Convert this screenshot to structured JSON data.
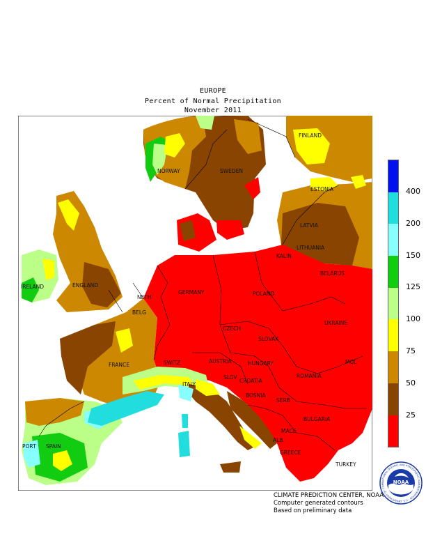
{
  "header": {
    "region": "EUROPE",
    "title": "Percent of Normal Precipitation",
    "period": "November 2011"
  },
  "legend": {
    "colors": [
      "#0011ee",
      "#22dddd",
      "#88ffff",
      "#11cc11",
      "#bbff88",
      "#ffff00",
      "#cc8800",
      "#884400",
      "#ff0000"
    ],
    "labels": [
      "400",
      "200",
      "150",
      "125",
      "100",
      "75",
      "50",
      "25"
    ]
  },
  "map": {
    "labels": {
      "finland": "FINLAND",
      "norway": "NORWAY",
      "sweden": "SWEDEN",
      "estonia": "ESTONIA",
      "latvia": "LATVIA",
      "lithuania": "LITHUANIA",
      "kalin": "KALIN",
      "belarus": "BELARUS",
      "ireland": "IRELAND",
      "england": "ENGLAND",
      "neth": "NETH",
      "belg": "BELG",
      "germany": "GERMANY",
      "poland": "POLAND",
      "ukraine": "UKRAINE",
      "czech": "CZECH",
      "slovak": "SLOVAK",
      "france": "FRANCE",
      "switz": "SWITZ",
      "austria": "AUSTRIA",
      "hungary": "HUNGARY",
      "mol": "MOL",
      "romania": "ROMANIA",
      "italy": "ITALY",
      "slov": "SLOV",
      "croatia": "CROATIA",
      "bosnia": "BOSNIA",
      "serb": "SERB",
      "bulgaria": "BULGARIA",
      "port": "PORT",
      "spain": "SPAIN",
      "mace": "MACE",
      "alb": "ALB",
      "greece": "GREECE",
      "turkey": "TURKEY"
    }
  },
  "credits": {
    "line1": "CLIMATE PREDICTION CENTER, NOAA",
    "line2": "Computer generated contours",
    "line3": "Based on preliminary data"
  },
  "logo": {
    "text": "NOAA",
    "ring": "NATIONAL OCEANIC AND ATMOSPHERIC ADMINISTRATION · U.S. DEPARTMENT OF COMMERCE"
  }
}
